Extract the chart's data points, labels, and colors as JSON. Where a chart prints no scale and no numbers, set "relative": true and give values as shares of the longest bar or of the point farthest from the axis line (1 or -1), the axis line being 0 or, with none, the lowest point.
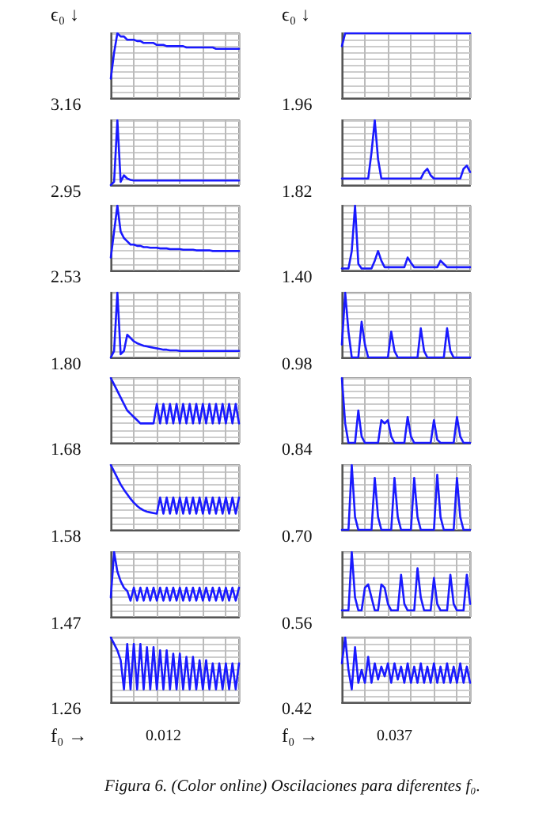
{
  "chart_data": [
    {
      "type": "line",
      "ylabel": "3.16",
      "annotations": [
        "ϵ₀ ↓"
      ],
      "relative": true,
      "grid": true,
      "categories": [
        null,
        null,
        null,
        null,
        null,
        null,
        null,
        null,
        null,
        null,
        null,
        null,
        null,
        null,
        null,
        null,
        null,
        null,
        null,
        null,
        null,
        null,
        null,
        null,
        null,
        null,
        null,
        null,
        null,
        null,
        null,
        null,
        null,
        null,
        null,
        null,
        null,
        null,
        null,
        null
      ],
      "series": [
        {
          "color": "#1a1aff",
          "values": [
            0.3,
            0.7,
            1,
            0.95,
            0.95,
            0.9,
            0.9,
            0.9,
            0.88,
            0.88,
            0.85,
            0.85,
            0.85,
            0.85,
            0.82,
            0.82,
            0.82,
            0.8,
            0.8,
            0.8,
            0.8,
            0.8,
            0.8,
            0.78,
            0.78,
            0.78,
            0.78,
            0.78,
            0.78,
            0.78,
            0.78,
            0.78,
            0.76,
            0.76,
            0.76,
            0.76,
            0.76,
            0.76,
            0.76,
            0.76
          ]
        }
      ]
    },
    {
      "type": "line",
      "ylabel": "1.96",
      "annotations": [
        "ϵ₀ ↓"
      ],
      "relative": true,
      "grid": true,
      "categories": [
        null,
        null,
        null,
        null,
        null,
        null,
        null,
        null,
        null,
        null,
        null,
        null,
        null,
        null,
        null,
        null,
        null,
        null,
        null,
        null,
        null,
        null,
        null,
        null,
        null,
        null,
        null,
        null,
        null,
        null,
        null,
        null,
        null,
        null,
        null,
        null,
        null,
        null,
        null,
        null
      ],
      "series": [
        {
          "color": "#1a1aff",
          "values": [
            0.8,
            1,
            1,
            1,
            1,
            1,
            1,
            1,
            1,
            1,
            1,
            1,
            1,
            1,
            1,
            1,
            1,
            1,
            1,
            1,
            1,
            1,
            1,
            1,
            1,
            1,
            1,
            1,
            1,
            1,
            1,
            1,
            1,
            1,
            1,
            1,
            1,
            1,
            1,
            1
          ]
        }
      ]
    },
    {
      "type": "line",
      "ylabel": "2.95",
      "relative": true,
      "grid": true,
      "categories": [
        null,
        null,
        null,
        null,
        null,
        null,
        null,
        null,
        null,
        null,
        null,
        null,
        null,
        null,
        null,
        null,
        null,
        null,
        null,
        null,
        null,
        null,
        null,
        null,
        null,
        null,
        null,
        null,
        null,
        null,
        null,
        null,
        null,
        null,
        null,
        null,
        null,
        null,
        null,
        null
      ],
      "series": [
        {
          "color": "#1a1aff",
          "values": [
            0,
            0.05,
            1,
            0.05,
            0.15,
            0.1,
            0.08,
            0.07,
            0.07,
            0.07,
            0.07,
            0.07,
            0.07,
            0.07,
            0.07,
            0.07,
            0.07,
            0.07,
            0.07,
            0.07,
            0.07,
            0.07,
            0.07,
            0.07,
            0.07,
            0.07,
            0.07,
            0.07,
            0.07,
            0.07,
            0.07,
            0.07,
            0.07,
            0.07,
            0.07,
            0.07,
            0.07,
            0.07,
            0.07,
            0.07
          ]
        }
      ]
    },
    {
      "type": "line",
      "ylabel": "1.82",
      "relative": true,
      "grid": true,
      "categories": [
        null,
        null,
        null,
        null,
        null,
        null,
        null,
        null,
        null,
        null,
        null,
        null,
        null,
        null,
        null,
        null,
        null,
        null,
        null,
        null,
        null,
        null,
        null,
        null,
        null,
        null,
        null,
        null,
        null,
        null,
        null,
        null,
        null,
        null,
        null,
        null,
        null,
        null,
        null,
        null
      ],
      "series": [
        {
          "color": "#1a1aff",
          "values": [
            0.1,
            0.1,
            0.1,
            0.1,
            0.1,
            0.1,
            0.1,
            0.1,
            0.1,
            0.5,
            1,
            0.4,
            0.1,
            0.1,
            0.1,
            0.1,
            0.1,
            0.1,
            0.1,
            0.1,
            0.1,
            0.1,
            0.1,
            0.1,
            0.1,
            0.2,
            0.25,
            0.15,
            0.1,
            0.1,
            0.1,
            0.1,
            0.1,
            0.1,
            0.1,
            0.1,
            0.1,
            0.25,
            0.3,
            0.2
          ]
        }
      ]
    },
    {
      "type": "line",
      "ylabel": "2.53",
      "relative": true,
      "grid": true,
      "categories": [
        null,
        null,
        null,
        null,
        null,
        null,
        null,
        null,
        null,
        null,
        null,
        null,
        null,
        null,
        null,
        null,
        null,
        null,
        null,
        null,
        null,
        null,
        null,
        null,
        null,
        null,
        null,
        null,
        null,
        null,
        null,
        null,
        null,
        null,
        null,
        null,
        null,
        null,
        null,
        null
      ],
      "series": [
        {
          "color": "#1a1aff",
          "values": [
            0.2,
            0.6,
            1,
            0.6,
            0.5,
            0.45,
            0.4,
            0.4,
            0.38,
            0.38,
            0.36,
            0.36,
            0.35,
            0.35,
            0.35,
            0.34,
            0.34,
            0.34,
            0.33,
            0.33,
            0.33,
            0.33,
            0.32,
            0.32,
            0.32,
            0.32,
            0.31,
            0.31,
            0.31,
            0.31,
            0.31,
            0.3,
            0.3,
            0.3,
            0.3,
            0.3,
            0.3,
            0.3,
            0.3,
            0.3
          ]
        }
      ]
    },
    {
      "type": "line",
      "ylabel": "1.40",
      "relative": true,
      "grid": true,
      "categories": [
        null,
        null,
        null,
        null,
        null,
        null,
        null,
        null,
        null,
        null,
        null,
        null,
        null,
        null,
        null,
        null,
        null,
        null,
        null,
        null,
        null,
        null,
        null,
        null,
        null,
        null,
        null,
        null,
        null,
        null,
        null,
        null,
        null,
        null,
        null,
        null,
        null,
        null,
        null,
        null
      ],
      "series": [
        {
          "color": "#1a1aff",
          "values": [
            0.03,
            0.03,
            0.03,
            0.3,
            1,
            0.1,
            0.03,
            0.03,
            0.03,
            0.03,
            0.15,
            0.3,
            0.15,
            0.05,
            0.05,
            0.05,
            0.05,
            0.05,
            0.05,
            0.05,
            0.2,
            0.12,
            0.05,
            0.05,
            0.05,
            0.05,
            0.05,
            0.05,
            0.05,
            0.05,
            0.15,
            0.1,
            0.05,
            0.05,
            0.05,
            0.05,
            0.05,
            0.05,
            0.05,
            0.05
          ]
        }
      ]
    },
    {
      "type": "line",
      "ylabel": "1.80",
      "relative": true,
      "grid": true,
      "categories": [
        null,
        null,
        null,
        null,
        null,
        null,
        null,
        null,
        null,
        null,
        null,
        null,
        null,
        null,
        null,
        null,
        null,
        null,
        null,
        null,
        null,
        null,
        null,
        null,
        null,
        null,
        null,
        null,
        null,
        null,
        null,
        null,
        null,
        null,
        null,
        null,
        null,
        null,
        null,
        null
      ],
      "series": [
        {
          "color": "#1a1aff",
          "values": [
            0,
            0.1,
            1,
            0.05,
            0.1,
            0.35,
            0.3,
            0.25,
            0.22,
            0.2,
            0.18,
            0.17,
            0.16,
            0.15,
            0.14,
            0.13,
            0.12,
            0.12,
            0.11,
            0.11,
            0.11,
            0.1,
            0.1,
            0.1,
            0.1,
            0.1,
            0.1,
            0.1,
            0.1,
            0.1,
            0.1,
            0.1,
            0.1,
            0.1,
            0.1,
            0.1,
            0.1,
            0.1,
            0.1,
            0.1
          ]
        }
      ]
    },
    {
      "type": "line",
      "ylabel": "0.98",
      "relative": true,
      "grid": true,
      "categories": [
        null,
        null,
        null,
        null,
        null,
        null,
        null,
        null,
        null,
        null,
        null,
        null,
        null,
        null,
        null,
        null,
        null,
        null,
        null,
        null,
        null,
        null,
        null,
        null,
        null,
        null,
        null,
        null,
        null,
        null,
        null,
        null,
        null,
        null,
        null,
        null,
        null,
        null,
        null,
        null
      ],
      "series": [
        {
          "color": "#1a1aff",
          "values": [
            0.2,
            1,
            0.4,
            0,
            0,
            0,
            0.55,
            0.2,
            0,
            0,
            0,
            0,
            0,
            0,
            0,
            0.4,
            0.1,
            0,
            0,
            0,
            0,
            0,
            0,
            0,
            0.45,
            0.1,
            0,
            0,
            0,
            0,
            0,
            0,
            0.45,
            0.1,
            0,
            0,
            0,
            0,
            0,
            0
          ]
        }
      ]
    },
    {
      "type": "line",
      "ylabel": "1.68",
      "relative": true,
      "grid": true,
      "categories": [
        null,
        null,
        null,
        null,
        null,
        null,
        null,
        null,
        null,
        null,
        null,
        null,
        null,
        null,
        null,
        null,
        null,
        null,
        null,
        null,
        null,
        null,
        null,
        null,
        null,
        null,
        null,
        null,
        null,
        null,
        null,
        null,
        null,
        null,
        null,
        null,
        null,
        null,
        null,
        null
      ],
      "series": [
        {
          "color": "#1a1aff",
          "values": [
            1,
            0.9,
            0.8,
            0.7,
            0.6,
            0.5,
            0.45,
            0.4,
            0.35,
            0.3,
            0.3,
            0.3,
            0.3,
            0.3,
            0.6,
            0.3,
            0.6,
            0.3,
            0.6,
            0.3,
            0.6,
            0.3,
            0.6,
            0.3,
            0.6,
            0.3,
            0.6,
            0.3,
            0.6,
            0.3,
            0.6,
            0.3,
            0.6,
            0.3,
            0.6,
            0.3,
            0.6,
            0.3,
            0.6,
            0.3
          ]
        }
      ]
    },
    {
      "type": "line",
      "ylabel": "0.84",
      "relative": true,
      "grid": true,
      "categories": [
        null,
        null,
        null,
        null,
        null,
        null,
        null,
        null,
        null,
        null,
        null,
        null,
        null,
        null,
        null,
        null,
        null,
        null,
        null,
        null,
        null,
        null,
        null,
        null,
        null,
        null,
        null,
        null,
        null,
        null,
        null,
        null,
        null,
        null,
        null,
        null,
        null,
        null,
        null,
        null
      ],
      "series": [
        {
          "color": "#1a1aff",
          "values": [
            1,
            0.3,
            0,
            0,
            0,
            0.5,
            0.1,
            0,
            0,
            0,
            0,
            0,
            0.35,
            0.3,
            0.35,
            0.1,
            0,
            0,
            0,
            0,
            0.4,
            0.1,
            0,
            0,
            0,
            0,
            0,
            0,
            0.35,
            0.05,
            0,
            0,
            0,
            0,
            0,
            0.4,
            0.1,
            0,
            0,
            0
          ]
        }
      ]
    },
    {
      "type": "line",
      "ylabel": "1.58",
      "relative": true,
      "grid": true,
      "categories": [
        null,
        null,
        null,
        null,
        null,
        null,
        null,
        null,
        null,
        null,
        null,
        null,
        null,
        null,
        null,
        null,
        null,
        null,
        null,
        null,
        null,
        null,
        null,
        null,
        null,
        null,
        null,
        null,
        null,
        null,
        null,
        null,
        null,
        null,
        null,
        null,
        null,
        null,
        null,
        null
      ],
      "series": [
        {
          "color": "#1a1aff",
          "values": [
            1,
            0.9,
            0.8,
            0.7,
            0.62,
            0.55,
            0.48,
            0.42,
            0.37,
            0.33,
            0.3,
            0.28,
            0.27,
            0.26,
            0.25,
            0.5,
            0.25,
            0.5,
            0.25,
            0.5,
            0.25,
            0.5,
            0.25,
            0.5,
            0.25,
            0.5,
            0.25,
            0.5,
            0.25,
            0.5,
            0.25,
            0.5,
            0.25,
            0.5,
            0.25,
            0.5,
            0.25,
            0.5,
            0.25,
            0.5
          ]
        }
      ]
    },
    {
      "type": "line",
      "ylabel": "0.70",
      "relative": true,
      "grid": true,
      "categories": [
        null,
        null,
        null,
        null,
        null,
        null,
        null,
        null,
        null,
        null,
        null,
        null,
        null,
        null,
        null,
        null,
        null,
        null,
        null,
        null,
        null,
        null,
        null,
        null,
        null,
        null,
        null,
        null,
        null,
        null,
        null,
        null,
        null,
        null,
        null,
        null,
        null,
        null,
        null,
        null
      ],
      "series": [
        {
          "color": "#1a1aff",
          "values": [
            0,
            0,
            0,
            1,
            0.2,
            0,
            0,
            0,
            0,
            0,
            0.8,
            0.2,
            0,
            0,
            0,
            0,
            0.8,
            0.2,
            0,
            0,
            0,
            0,
            0.8,
            0.2,
            0,
            0,
            0,
            0,
            0,
            0.85,
            0.2,
            0,
            0,
            0,
            0,
            0.8,
            0.2,
            0,
            0,
            0
          ]
        }
      ]
    },
    {
      "type": "line",
      "ylabel": "1.47",
      "relative": true,
      "grid": true,
      "categories": [
        null,
        null,
        null,
        null,
        null,
        null,
        null,
        null,
        null,
        null,
        null,
        null,
        null,
        null,
        null,
        null,
        null,
        null,
        null,
        null,
        null,
        null,
        null,
        null,
        null,
        null,
        null,
        null,
        null,
        null,
        null,
        null,
        null,
        null,
        null,
        null,
        null,
        null,
        null,
        null
      ],
      "series": [
        {
          "color": "#1a1aff",
          "values": [
            0.3,
            1,
            0.7,
            0.55,
            0.45,
            0.4,
            0.25,
            0.45,
            0.25,
            0.45,
            0.25,
            0.45,
            0.25,
            0.45,
            0.25,
            0.45,
            0.25,
            0.45,
            0.25,
            0.45,
            0.25,
            0.45,
            0.25,
            0.45,
            0.25,
            0.45,
            0.25,
            0.45,
            0.25,
            0.45,
            0.25,
            0.45,
            0.25,
            0.45,
            0.25,
            0.45,
            0.25,
            0.45,
            0.25,
            0.45
          ]
        }
      ]
    },
    {
      "type": "line",
      "ylabel": "0.56",
      "relative": true,
      "grid": true,
      "categories": [
        null,
        null,
        null,
        null,
        null,
        null,
        null,
        null,
        null,
        null,
        null,
        null,
        null,
        null,
        null,
        null,
        null,
        null,
        null,
        null,
        null,
        null,
        null,
        null,
        null,
        null,
        null,
        null,
        null,
        null,
        null,
        null,
        null,
        null,
        null,
        null,
        null,
        null,
        null,
        null
      ],
      "series": [
        {
          "color": "#1a1aff",
          "values": [
            0.1,
            0.1,
            0.1,
            1,
            0.3,
            0.1,
            0.1,
            0.45,
            0.5,
            0.3,
            0.1,
            0.1,
            0.5,
            0.45,
            0.2,
            0.1,
            0.1,
            0.1,
            0.65,
            0.2,
            0.1,
            0.1,
            0.1,
            0.75,
            0.3,
            0.1,
            0.1,
            0.1,
            0.6,
            0.2,
            0.1,
            0.1,
            0.1,
            0.65,
            0.2,
            0.1,
            0.1,
            0.1,
            0.65,
            0.2
          ]
        }
      ]
    },
    {
      "type": "line",
      "ylabel": "1.26",
      "annotations": [
        "f₀ →",
        "0.012"
      ],
      "relative": true,
      "grid": true,
      "categories": [
        null,
        null,
        null,
        null,
        null,
        null,
        null,
        null,
        null,
        null,
        null,
        null,
        null,
        null,
        null,
        null,
        null,
        null,
        null,
        null,
        null,
        null,
        null,
        null,
        null,
        null,
        null,
        null,
        null,
        null,
        null,
        null,
        null,
        null,
        null,
        null,
        null,
        null,
        null,
        null
      ],
      "series": [
        {
          "color": "#1a1aff",
          "values": [
            1,
            0.9,
            0.8,
            0.65,
            0.2,
            0.9,
            0.2,
            0.9,
            0.2,
            0.9,
            0.2,
            0.85,
            0.2,
            0.85,
            0.2,
            0.8,
            0.2,
            0.8,
            0.2,
            0.75,
            0.2,
            0.75,
            0.2,
            0.7,
            0.2,
            0.7,
            0.2,
            0.65,
            0.2,
            0.65,
            0.2,
            0.6,
            0.2,
            0.6,
            0.2,
            0.6,
            0.2,
            0.6,
            0.2,
            0.6
          ]
        }
      ]
    },
    {
      "type": "line",
      "ylabel": "0.42",
      "annotations": [
        "f₀ →",
        "0.037",
        "Figura 6. (Color online) Oscilaciones para diferentes f₀."
      ],
      "relative": true,
      "grid": true,
      "categories": [
        null,
        null,
        null,
        null,
        null,
        null,
        null,
        null,
        null,
        null,
        null,
        null,
        null,
        null,
        null,
        null,
        null,
        null,
        null,
        null,
        null,
        null,
        null,
        null,
        null,
        null,
        null,
        null,
        null,
        null,
        null,
        null,
        null,
        null,
        null,
        null,
        null,
        null,
        null,
        null
      ],
      "series": [
        {
          "color": "#1a1aff",
          "values": [
            0.6,
            1,
            0.5,
            0.2,
            0.85,
            0.3,
            0.5,
            0.3,
            0.7,
            0.3,
            0.6,
            0.35,
            0.55,
            0.4,
            0.6,
            0.3,
            0.6,
            0.35,
            0.55,
            0.3,
            0.6,
            0.3,
            0.55,
            0.3,
            0.6,
            0.3,
            0.55,
            0.3,
            0.6,
            0.3,
            0.55,
            0.3,
            0.6,
            0.3,
            0.55,
            0.3,
            0.6,
            0.3,
            0.55,
            0.3
          ]
        }
      ]
    }
  ]
}
